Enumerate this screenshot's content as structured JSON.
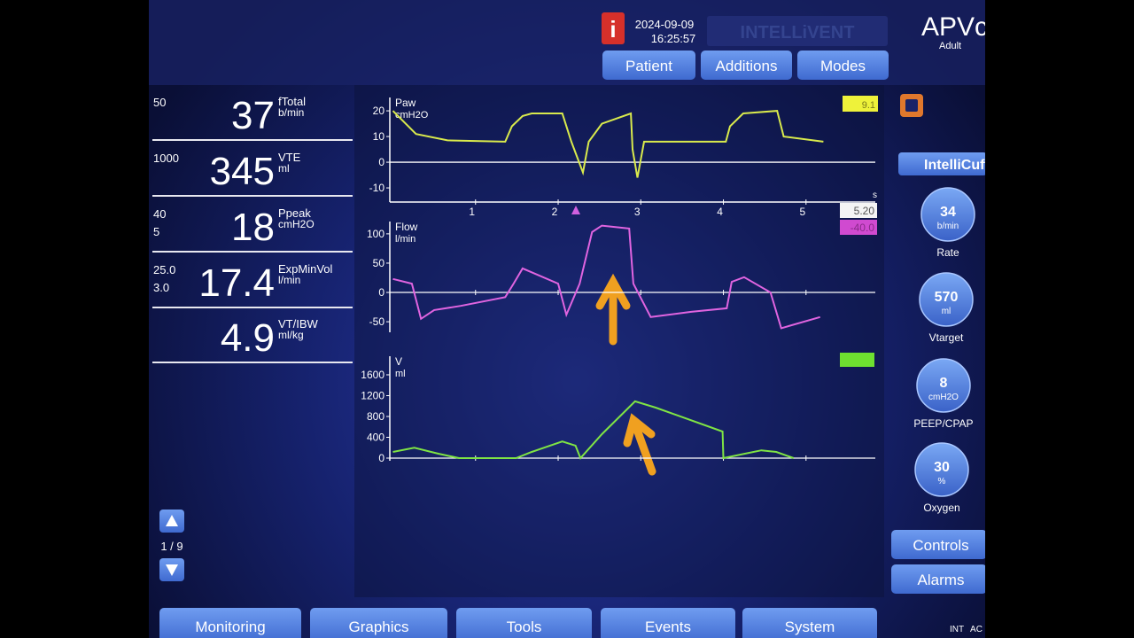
{
  "header": {
    "date": "2024-09-09",
    "time": "16:25:57",
    "brand": "INTELLiVENT",
    "mode": "APVcmv",
    "patient_type": "Adult",
    "buttons": [
      "Patient",
      "Additions",
      "Modes"
    ]
  },
  "parameters": [
    {
      "limits": [
        "50"
      ],
      "value": "37",
      "name": "fTotal",
      "unit": "b/min"
    },
    {
      "limits": [
        "1000"
      ],
      "value": "345",
      "name": "VTE",
      "unit": "ml"
    },
    {
      "limits": [
        "40",
        "5"
      ],
      "value": "18",
      "name": "Ppeak",
      "unit": "cmH2O"
    },
    {
      "limits": [
        "25.0",
        "3.0"
      ],
      "value": "17.4",
      "name": "ExpMinVol",
      "unit": "l/min"
    },
    {
      "limits": [],
      "value": "4.9",
      "name": "VT/IBW",
      "unit": "ml/kg"
    }
  ],
  "waveforms": [
    {
      "label": "Paw",
      "unit": "cmH2O",
      "color": "#d9ea4c",
      "readout": "9.1",
      "cursor_time": "5.20",
      "xunit": "s",
      "xlim": [
        0,
        5.86
      ],
      "xticks": [
        1,
        2,
        3,
        4,
        5
      ],
      "ylim": [
        -15.5,
        25.2
      ],
      "yticks": [
        20,
        10,
        0,
        -10
      ],
      "x": [
        0,
        0.28,
        0.66,
        1.36,
        1.44,
        1.57,
        1.68,
        2.05,
        2.16,
        2.3,
        2.37,
        2.53,
        2.88,
        2.9,
        2.96,
        3.04,
        4.03,
        4.08,
        4.24,
        4.65,
        4.73,
        5.21
      ],
      "values": [
        20,
        11,
        8.5,
        8,
        14,
        18,
        19,
        19,
        8,
        -4,
        8,
        15,
        19,
        5,
        -6,
        8,
        8,
        14,
        19,
        20,
        10,
        8
      ]
    },
    {
      "label": "Flow",
      "unit": "l/min",
      "color": "#e064e0",
      "readout": "-40.0",
      "xlim": [
        0,
        5.86
      ],
      "ylim": [
        -68,
        121
      ],
      "yticks": [
        100,
        50,
        0,
        -50
      ],
      "x": [
        0,
        0.23,
        0.34,
        0.5,
        0.82,
        1.36,
        1.46,
        1.57,
        2.0,
        2.1,
        2.26,
        2.41,
        2.53,
        2.86,
        2.91,
        3.12,
        3.61,
        4.04,
        4.1,
        4.25,
        4.57,
        4.7,
        5.17
      ],
      "values": [
        23,
        15,
        -45,
        -30,
        -23,
        -8,
        15,
        41,
        15,
        -38,
        15,
        103,
        114,
        109,
        15,
        -42,
        -33,
        -27,
        18,
        26,
        0,
        -61,
        -42
      ]
    },
    {
      "label": "V",
      "unit": "ml",
      "color": "#7fe444",
      "xlim": [
        0,
        5.86
      ],
      "ylim": [
        -51,
        1957
      ],
      "yticks": [
        1600,
        1200,
        800,
        400,
        0
      ],
      "x": [
        0,
        0.26,
        0.55,
        0.8,
        1.49,
        1.68,
        2.05,
        2.21,
        2.27,
        2.53,
        2.93,
        3.18,
        3.99,
        4.0,
        4.46,
        4.64,
        4.85
      ],
      "values": [
        120,
        200,
        85,
        0,
        0,
        120,
        320,
        240,
        0,
        460,
        1090,
        970,
        510,
        0,
        150,
        120,
        0
      ]
    }
  ],
  "page_indicator": "1 / 9",
  "intellicuff": "IntelliCuff",
  "controls": [
    {
      "value": "34",
      "unit": "b/min",
      "label": "Rate"
    },
    {
      "value": "570",
      "unit": "ml",
      "label": "Vtarget"
    },
    {
      "value": "8",
      "unit": "cmH2O",
      "label": "PEEP/CPAP"
    },
    {
      "value": "30",
      "unit": "%",
      "label": "Oxygen"
    }
  ],
  "side_buttons": [
    "Controls",
    "Alarms"
  ],
  "tabs": [
    "Monitoring",
    "Graphics",
    "Tools",
    "Events",
    "System"
  ],
  "status": [
    "INT",
    "AC"
  ]
}
